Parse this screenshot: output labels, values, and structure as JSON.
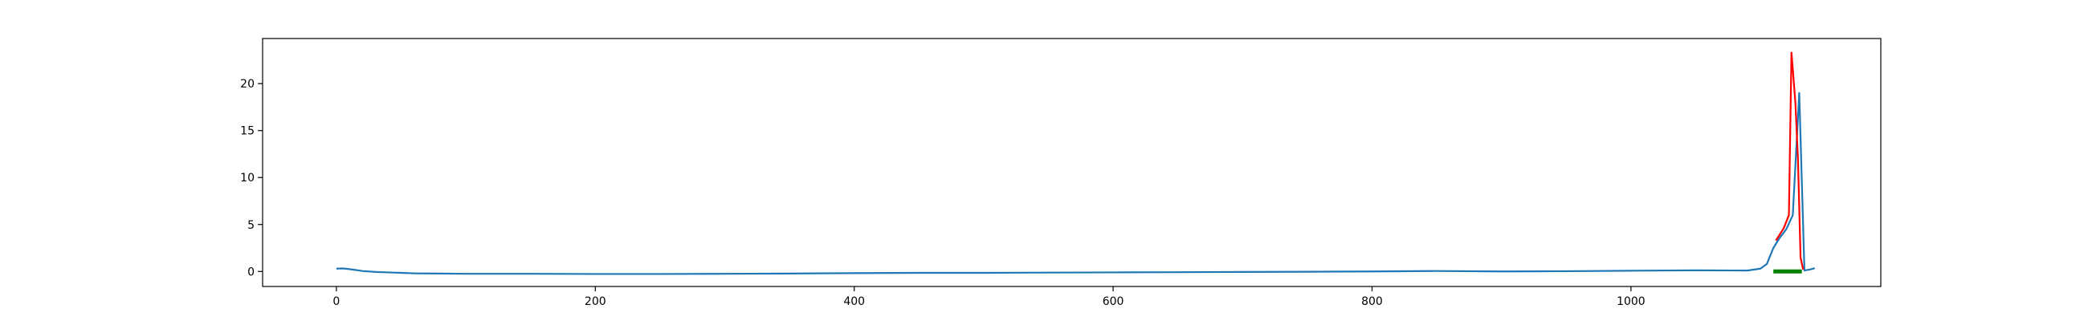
{
  "chart_data": {
    "type": "line",
    "title": "",
    "xlabel": "",
    "ylabel": "",
    "xlim": [
      -57,
      1193
    ],
    "ylim": [
      -1.6,
      24.8
    ],
    "xticks": [
      0,
      200,
      400,
      600,
      800,
      1000
    ],
    "xtick_labels": [
      "0",
      "200",
      "400",
      "600",
      "800",
      "1000"
    ],
    "yticks": [
      0,
      5,
      10,
      15,
      20
    ],
    "ytick_labels": [
      "0",
      "5",
      "10",
      "15",
      "20"
    ],
    "grid": false,
    "legend": "none",
    "series": [
      {
        "color": "#1f77b4",
        "style": "line",
        "points": [
          [
            0,
            0.3
          ],
          [
            5,
            0.32
          ],
          [
            10,
            0.25
          ],
          [
            15,
            0.15
          ],
          [
            20,
            0.05
          ],
          [
            30,
            -0.05
          ],
          [
            40,
            -0.1
          ],
          [
            50,
            -0.15
          ],
          [
            60,
            -0.2
          ],
          [
            80,
            -0.22
          ],
          [
            100,
            -0.25
          ],
          [
            150,
            -0.25
          ],
          [
            200,
            -0.27
          ],
          [
            250,
            -0.27
          ],
          [
            300,
            -0.25
          ],
          [
            350,
            -0.22
          ],
          [
            400,
            -0.18
          ],
          [
            450,
            -0.15
          ],
          [
            500,
            -0.15
          ],
          [
            550,
            -0.12
          ],
          [
            600,
            -0.1
          ],
          [
            650,
            -0.08
          ],
          [
            700,
            -0.05
          ],
          [
            750,
            -0.03
          ],
          [
            800,
            0.0
          ],
          [
            850,
            0.05
          ],
          [
            900,
            0.0
          ],
          [
            950,
            0.03
          ],
          [
            1000,
            0.08
          ],
          [
            1050,
            0.12
          ],
          [
            1090,
            0.1
          ],
          [
            1100,
            0.3
          ],
          [
            1105,
            0.8
          ],
          [
            1110,
            2.5
          ],
          [
            1115,
            3.6
          ],
          [
            1120,
            4.5
          ],
          [
            1125,
            6.0
          ],
          [
            1130,
            19.0
          ],
          [
            1134,
            0.1
          ],
          [
            1138,
            0.2
          ],
          [
            1142,
            0.35
          ]
        ]
      },
      {
        "color": "#ff0000",
        "style": "line",
        "points": [
          [
            1112,
            3.3
          ],
          [
            1118,
            4.6
          ],
          [
            1122,
            6.0
          ],
          [
            1124,
            23.3
          ],
          [
            1127,
            18.0
          ],
          [
            1129,
            12.0
          ],
          [
            1131,
            1.5
          ],
          [
            1133,
            0.2
          ]
        ]
      },
      {
        "color": "#008000",
        "style": "segment",
        "points": [
          [
            1110,
            0.0
          ],
          [
            1132,
            0.0
          ]
        ]
      }
    ]
  }
}
